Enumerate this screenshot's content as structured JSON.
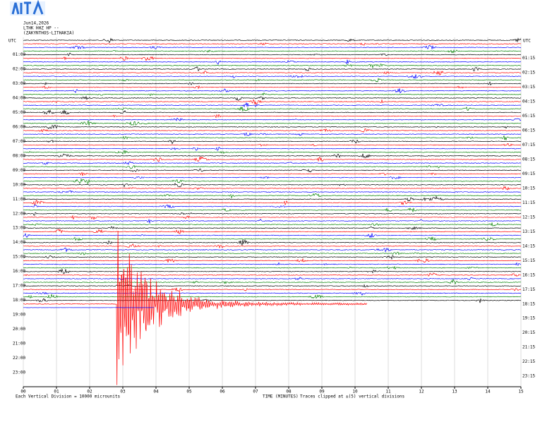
{
  "header": {
    "date": "Jun14,2026",
    "station": "LTHK HHZ HP --",
    "location": "(ZAKYNTHOS-LITHAKIA)"
  },
  "chart_data": {
    "type": "helicorder",
    "left_axis_label": "UTC",
    "right_axis_label": "UTC",
    "left_labels": [
      "01:00",
      "02:00",
      "03:00",
      "04:00",
      "05:00",
      "06:00",
      "07:00",
      "08:00",
      "09:00",
      "10:00",
      "11:00",
      "12:00",
      "13:00",
      "14:00",
      "15:00",
      "16:00",
      "17:00",
      "18:00",
      "19:00",
      "20:00",
      "21:00",
      "22:00",
      "23:00"
    ],
    "right_labels": [
      "01:15",
      "02:15",
      "03:15",
      "04:15",
      "05:15",
      "06:15",
      "07:15",
      "08:15",
      "09:15",
      "10:15",
      "11:15",
      "12:15",
      "13:15",
      "14:15",
      "15:15",
      "16:15",
      "17:15",
      "18:15",
      "19:15",
      "20:15",
      "21:15",
      "22:15",
      "23:15"
    ],
    "xlim": [
      0,
      15
    ],
    "xticks": [
      {
        "value": 0,
        "label": "00"
      },
      {
        "value": 1,
        "label": "01"
      },
      {
        "value": 2,
        "label": "02"
      },
      {
        "value": 3,
        "label": "03"
      },
      {
        "value": 4,
        "label": "04"
      },
      {
        "value": 5,
        "label": "05"
      },
      {
        "value": 6,
        "label": "06"
      },
      {
        "value": 7,
        "label": "07"
      },
      {
        "value": 8,
        "label": "08"
      },
      {
        "value": 9,
        "label": "09"
      },
      10,
      11,
      12,
      13,
      14,
      15
    ],
    "x_label": "TIME (MINUTES)",
    "clip_note": "Traces clipped at ±(5) vertical divisions",
    "footnote": "Each Vertical Division = 10000 microunits",
    "trace_colors": [
      "#000000",
      "#ff0000",
      "#0000ff",
      "#008000"
    ],
    "grid": true
  }
}
